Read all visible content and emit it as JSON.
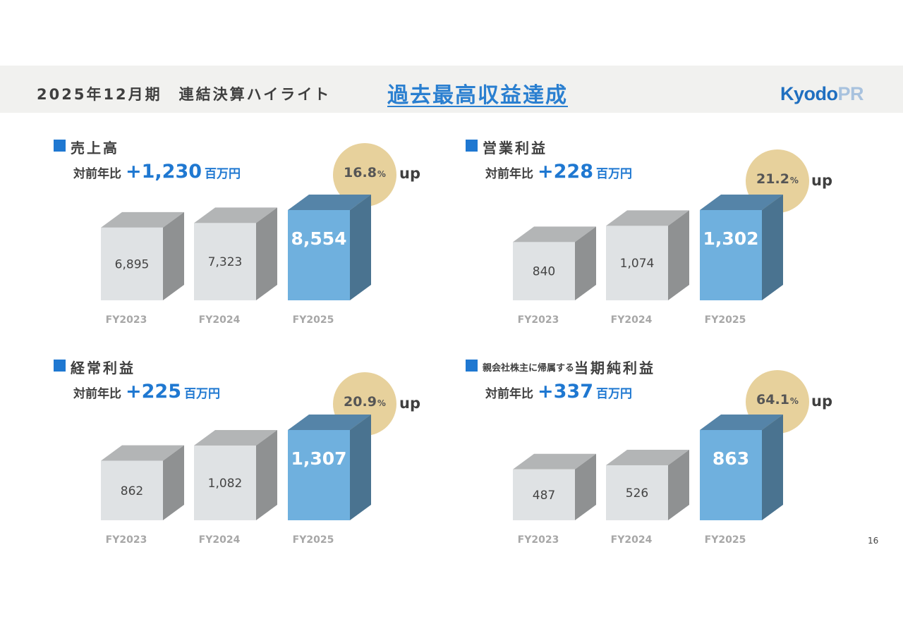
{
  "header": {
    "title": "2025年12月期　連結決算ハイライト",
    "highlight": "過去最高収益達成",
    "logo_main": "Kyodo",
    "logo_accent": "PR"
  },
  "page_number": "16",
  "colors": {
    "accent_blue": "#1f78d1",
    "bar_highlight_front": "#6fb0de",
    "bar_highlight_top": "#5584a8",
    "bar_highlight_side": "#4a7390",
    "bar_gray_front": "#dfe2e4",
    "bar_gray_top": "#b3b5b6",
    "bar_gray_side": "#8f9192",
    "circle": "#e7d19c"
  },
  "panels": [
    {
      "title": "売上高",
      "title_prefix": "",
      "yoy_label": "対前年比",
      "yoy_value": "+1,230",
      "yoy_unit": "百万円",
      "growth_value": "16.8",
      "growth_unit": "%",
      "growth_suffix": "up"
    },
    {
      "title": "営業利益",
      "title_prefix": "",
      "yoy_label": "対前年比",
      "yoy_value": "+228",
      "yoy_unit": "百万円",
      "growth_value": "21.2",
      "growth_unit": "%",
      "growth_suffix": "up"
    },
    {
      "title": "経常利益",
      "title_prefix": "",
      "yoy_label": "対前年比",
      "yoy_value": "+225",
      "yoy_unit": "百万円",
      "growth_value": "20.9",
      "growth_unit": "%",
      "growth_suffix": "up"
    },
    {
      "title": "当期純利益",
      "title_prefix": "親会社株主に帰属する",
      "yoy_label": "対前年比",
      "yoy_value": "+337",
      "yoy_unit": "百万円",
      "growth_value": "64.1",
      "growth_unit": "%",
      "growth_suffix": "up"
    }
  ],
  "chart_data": [
    {
      "type": "bar",
      "title": "売上高",
      "categories": [
        "FY2023",
        "FY2024",
        "FY2025"
      ],
      "values": [
        6895,
        7323,
        8554
      ],
      "value_labels": [
        "6,895",
        "7,323",
        "8,554"
      ],
      "highlight_index": 2
    },
    {
      "type": "bar",
      "title": "営業利益",
      "categories": [
        "FY2023",
        "FY2024",
        "FY2025"
      ],
      "values": [
        840,
        1074,
        1302
      ],
      "value_labels": [
        "840",
        "1,074",
        "1,302"
      ],
      "highlight_index": 2
    },
    {
      "type": "bar",
      "title": "経常利益",
      "categories": [
        "FY2023",
        "FY2024",
        "FY2025"
      ],
      "values": [
        862,
        1082,
        1307
      ],
      "value_labels": [
        "862",
        "1,082",
        "1,307"
      ],
      "highlight_index": 2
    },
    {
      "type": "bar",
      "title": "親会社株主に帰属する当期純利益",
      "categories": [
        "FY2023",
        "FY2024",
        "FY2025"
      ],
      "values": [
        487,
        526,
        863
      ],
      "value_labels": [
        "487",
        "526",
        "863"
      ],
      "highlight_index": 2
    }
  ]
}
